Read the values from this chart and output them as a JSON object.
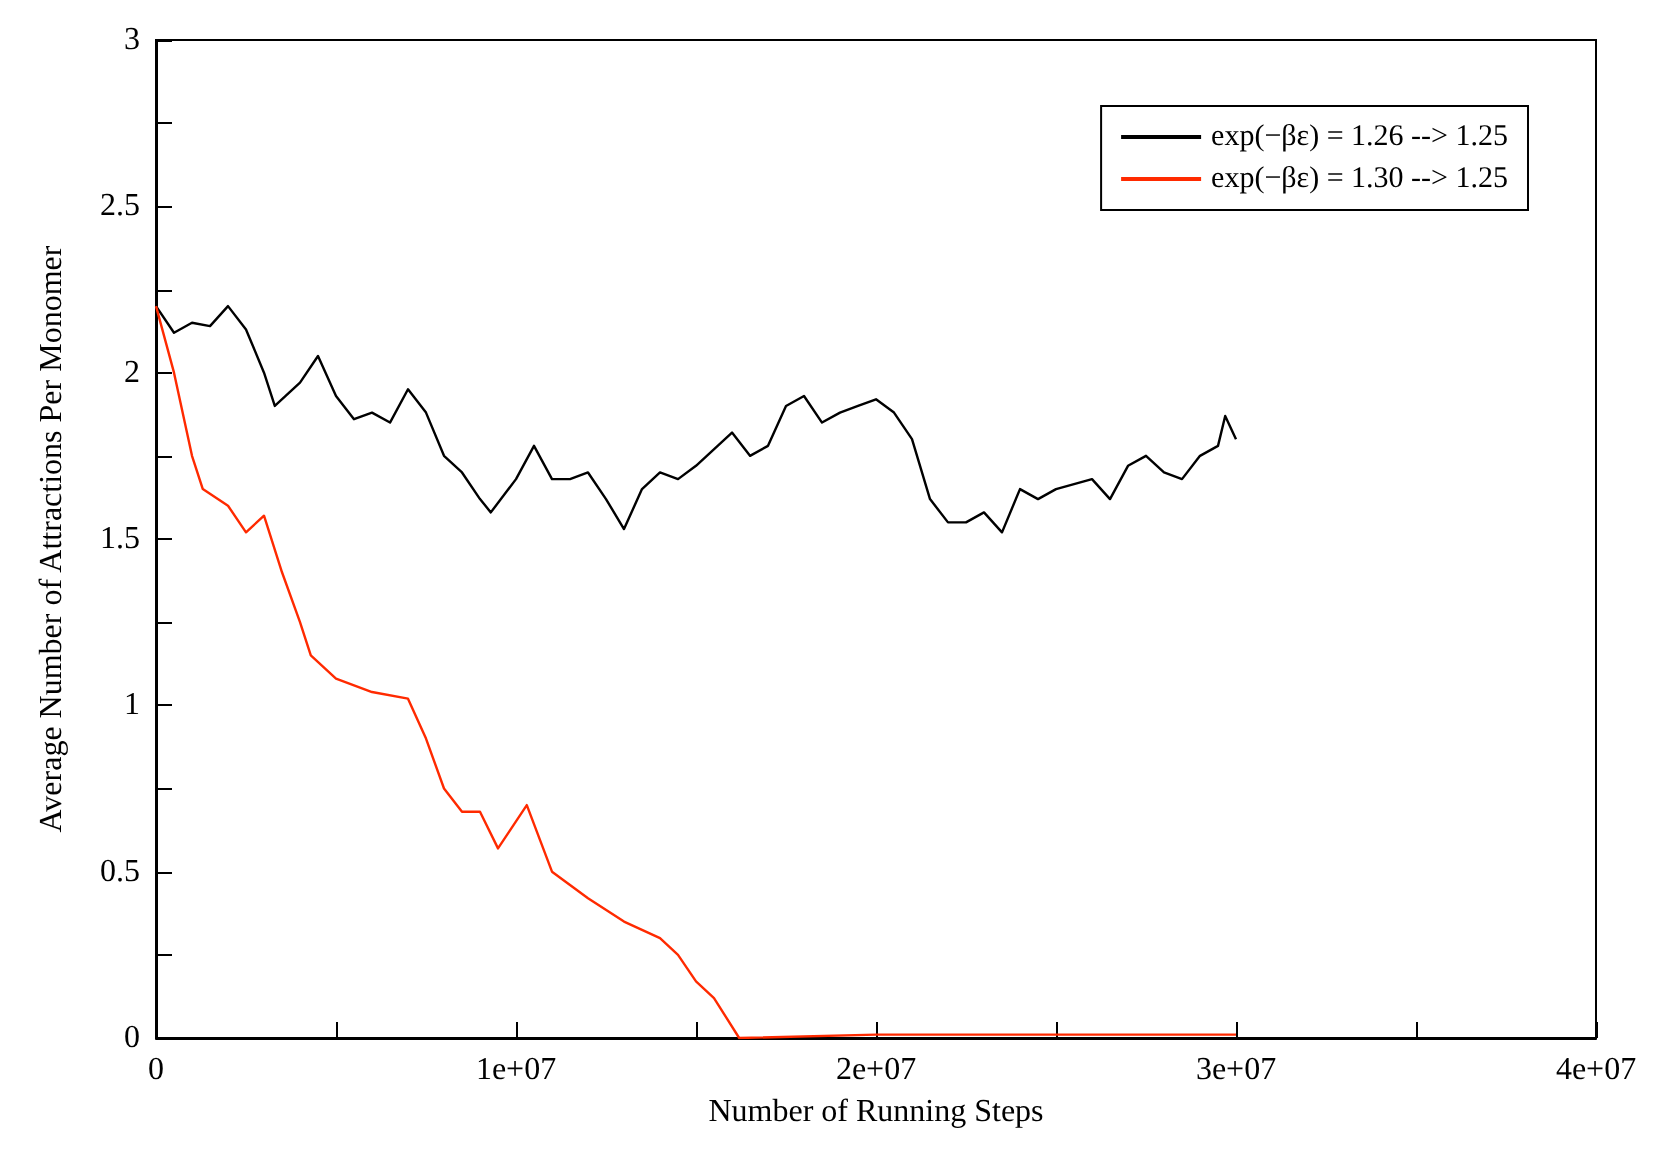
{
  "chart_data": {
    "type": "line",
    "xlabel": "Number of Running Steps",
    "ylabel": "Average Number of Attractions Per Monomer",
    "xlim": [
      0,
      40000000
    ],
    "ylim": [
      0,
      3
    ],
    "xticks": [
      {
        "value": 0,
        "label": "0"
      },
      {
        "value": 5000000,
        "label": null
      },
      {
        "value": 10000000,
        "label": "1e+07"
      },
      {
        "value": 15000000,
        "label": null
      },
      {
        "value": 20000000,
        "label": "2e+07"
      },
      {
        "value": 25000000,
        "label": null
      },
      {
        "value": 30000000,
        "label": "3e+07"
      },
      {
        "value": 35000000,
        "label": null
      },
      {
        "value": 40000000,
        "label": "4e+07"
      }
    ],
    "yticks": [
      0,
      {
        "value": 0.25,
        "label": null
      },
      0.5,
      {
        "value": 0.75,
        "label": null
      },
      1,
      {
        "value": 1.25,
        "label": null
      },
      1.5,
      {
        "value": 1.75,
        "label": null
      },
      2,
      {
        "value": 2.25,
        "label": null
      },
      2.5,
      {
        "value": 2.75,
        "label": null
      },
      3
    ],
    "grid": false,
    "legend": "top right",
    "marker": "none",
    "line_style": "solid",
    "series": [
      {
        "name": "exp(−βε) = 1.26 --> 1.25",
        "color": "#000000",
        "x": [
          0,
          500000,
          1000000,
          1500000,
          2000000,
          2500000,
          3000000,
          3300000,
          4000000,
          4500000,
          5000000,
          5500000,
          6000000,
          6500000,
          7000000,
          7500000,
          8000000,
          8500000,
          9000000,
          9300000,
          10000000,
          10500000,
          11000000,
          11500000,
          12000000,
          12500000,
          13000000,
          13500000,
          14000000,
          14500000,
          15000000,
          16000000,
          16500000,
          17000000,
          17500000,
          18000000,
          18500000,
          19000000,
          19500000,
          20000000,
          20500000,
          21000000,
          21500000,
          22000000,
          22500000,
          23000000,
          23500000,
          24000000,
          24500000,
          25000000,
          26000000,
          26500000,
          27000000,
          27500000,
          28000000,
          28500000,
          29000000,
          29500000,
          29700000,
          30000000
        ],
        "values": [
          2.2,
          2.12,
          2.15,
          2.14,
          2.2,
          2.13,
          2.0,
          1.9,
          1.97,
          2.05,
          1.93,
          1.86,
          1.88,
          1.85,
          1.95,
          1.88,
          1.75,
          1.7,
          1.62,
          1.58,
          1.68,
          1.78,
          1.68,
          1.68,
          1.7,
          1.62,
          1.53,
          1.65,
          1.7,
          1.68,
          1.72,
          1.82,
          1.75,
          1.78,
          1.9,
          1.93,
          1.85,
          1.88,
          1.9,
          1.92,
          1.88,
          1.8,
          1.62,
          1.55,
          1.55,
          1.58,
          1.52,
          1.65,
          1.62,
          1.65,
          1.68,
          1.62,
          1.72,
          1.75,
          1.7,
          1.68,
          1.75,
          1.78,
          1.87,
          1.8
        ]
      },
      {
        "name": "exp(−βε) = 1.30 --> 1.25",
        "color": "#ff2a00",
        "x": [
          0,
          500000,
          1000000,
          1300000,
          2000000,
          2500000,
          3000000,
          3500000,
          4000000,
          4300000,
          5000000,
          6000000,
          7000000,
          7500000,
          8000000,
          8500000,
          9000000,
          9500000,
          10300000,
          11000000,
          12000000,
          13000000,
          14000000,
          14500000,
          15000000,
          15500000,
          16200000,
          20000000,
          25000000,
          30000000
        ],
        "values": [
          2.2,
          2.0,
          1.75,
          1.65,
          1.6,
          1.52,
          1.57,
          1.4,
          1.25,
          1.15,
          1.08,
          1.04,
          1.02,
          0.9,
          0.75,
          0.68,
          0.68,
          0.57,
          0.7,
          0.5,
          0.42,
          0.35,
          0.3,
          0.25,
          0.17,
          0.12,
          0.0,
          0.01,
          0.01,
          0.01
        ]
      }
    ]
  }
}
